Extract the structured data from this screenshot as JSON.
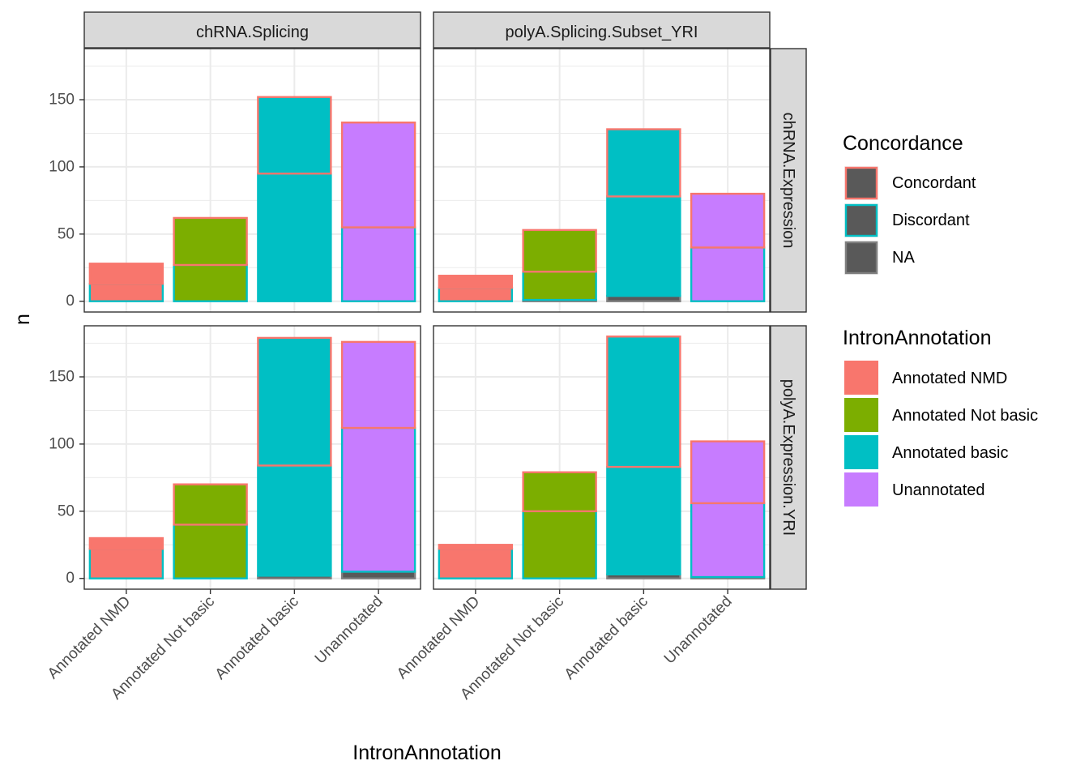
{
  "colors": {
    "Annotated NMD": "#F8766D",
    "Annotated Not basic": "#7CAE00",
    "Annotated basic": "#00BFC4",
    "Unannotated": "#C77CFF",
    "Concordant_outline": "#F8766D",
    "Discordant_outline": "#00BFC4",
    "NA_outline": "#7F7F7F",
    "NA_fill": "#595959",
    "strip_bg": "#D9D9D9",
    "panel_border": "#333333",
    "grid": "#EBEBEB"
  },
  "chart_data": {
    "type": "bar",
    "xlabel": "IntronAnnotation",
    "ylabel": "n",
    "ylim": [
      -8,
      188
    ],
    "yticks": [
      0,
      50,
      100,
      150
    ],
    "categories": [
      "Annotated NMD",
      "Annotated Not basic",
      "Annotated basic",
      "Unannotated"
    ],
    "col_facets": [
      "chRNA.Splicing",
      "polyA.Splicing.Subset_YRI"
    ],
    "row_facets": [
      "chRNA.Expression",
      "polyA.Expression.YRI"
    ],
    "stack_order": [
      "Concordant",
      "Discordant",
      "NA"
    ],
    "panels": [
      {
        "row": "chRNA.Expression",
        "col": "chRNA.Splicing",
        "series": [
          {
            "name": "Concordant",
            "values": [
              15,
              35,
              57,
              78
            ]
          },
          {
            "name": "Discordant",
            "values": [
              13,
              27,
              95,
              55
            ]
          },
          {
            "name": "NA",
            "values": [
              0,
              0,
              0,
              0
            ]
          }
        ]
      },
      {
        "row": "chRNA.Expression",
        "col": "polyA.Splicing.Subset_YRI",
        "series": [
          {
            "name": "Concordant",
            "values": [
              9,
              31,
              50,
              40
            ]
          },
          {
            "name": "Discordant",
            "values": [
              10,
              21,
              74,
              40
            ]
          },
          {
            "name": "NA",
            "values": [
              0,
              1,
              4,
              0
            ]
          }
        ]
      },
      {
        "row": "polyA.Expression.YRI",
        "col": "chRNA.Splicing",
        "series": [
          {
            "name": "Concordant",
            "values": [
              8,
              30,
              95,
              64
            ]
          },
          {
            "name": "Discordant",
            "values": [
              22,
              40,
              82,
              107
            ]
          },
          {
            "name": "NA",
            "values": [
              0,
              0,
              2,
              5
            ]
          }
        ]
      },
      {
        "row": "polyA.Expression.YRI",
        "col": "polyA.Splicing.Subset_YRI",
        "series": [
          {
            "name": "Concordant",
            "values": [
              3,
              29,
              97,
              46
            ]
          },
          {
            "name": "Discordant",
            "values": [
              22,
              50,
              80,
              55
            ]
          },
          {
            "name": "NA",
            "values": [
              0,
              0,
              3,
              1
            ]
          }
        ]
      }
    ]
  },
  "legend": {
    "concordance": {
      "title": "Concordance",
      "items": [
        "Concordant",
        "Discordant",
        "NA"
      ]
    },
    "intron": {
      "title": "IntronAnnotation",
      "items": [
        "Annotated NMD",
        "Annotated Not basic",
        "Annotated basic",
        "Unannotated"
      ]
    }
  }
}
